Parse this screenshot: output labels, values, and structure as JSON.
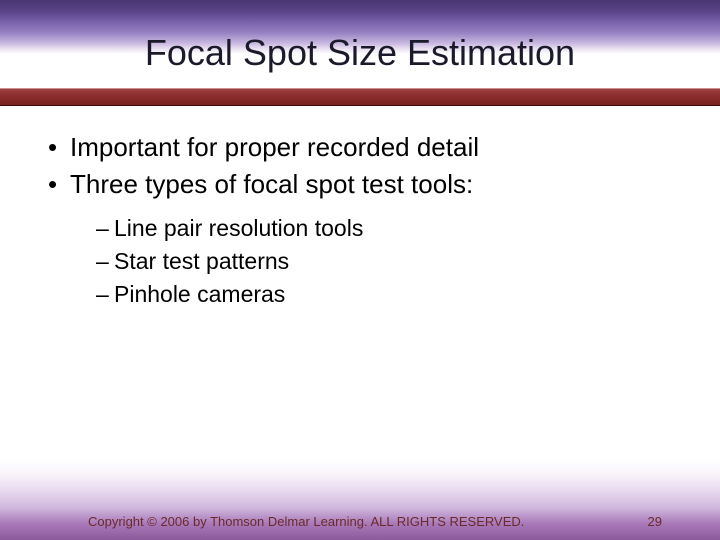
{
  "title": "Focal Spot Size Estimation",
  "bullets": {
    "main": [
      "Important for proper recorded detail",
      "Three types of focal spot test tools:"
    ],
    "sub": [
      "Line pair resolution tools",
      "Star test patterns",
      "Pinhole cameras"
    ]
  },
  "footer": {
    "copyright": "Copyright © 2006 by Thomson Delmar Learning. ALL RIGHTS RESERVED.",
    "page": "29"
  },
  "styling": {
    "title_color": "#1a1a2a",
    "title_fontsize": 36,
    "body_fontsize": 26,
    "sub_fontsize": 23,
    "red_bar_color": "#8c2e2e",
    "footer_color": "#6a2a2a",
    "footer_fontsize": 13,
    "bg_top_purple": "#4a3670",
    "bg_bottom_purple": "#8a5a9a",
    "bg_middle": "#ffffff"
  }
}
